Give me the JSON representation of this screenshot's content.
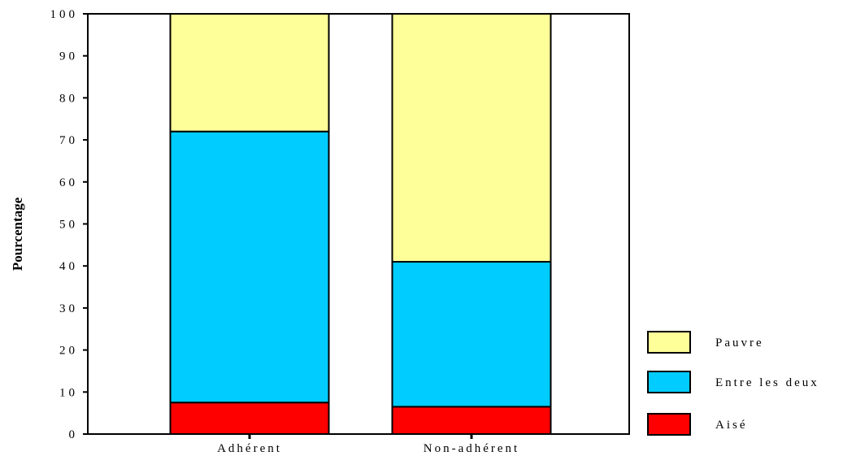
{
  "chart_data": {
    "type": "bar",
    "stacked": true,
    "categories": [
      "Adhérent",
      "Non-adhérent"
    ],
    "series": [
      {
        "name": "Aisé",
        "values": [
          7.5,
          6.5
        ],
        "color": "#ff0000"
      },
      {
        "name": "Entre les deux",
        "values": [
          64.5,
          34.5
        ],
        "color": "#00ccff"
      },
      {
        "name": "Pauvre",
        "values": [
          28,
          59
        ],
        "color": "#ffff99"
      }
    ],
    "ylabel": "Pourcentage",
    "xlabel": "",
    "ylim": [
      0,
      100
    ],
    "yticks": [
      "0",
      "10",
      "20",
      "30",
      "40",
      "50",
      "60",
      "70",
      "80",
      "90",
      "100"
    ],
    "legend_order": [
      "Pauvre",
      "Entre les deux",
      "Aisé"
    ],
    "legend_position": "right",
    "grid": false
  }
}
